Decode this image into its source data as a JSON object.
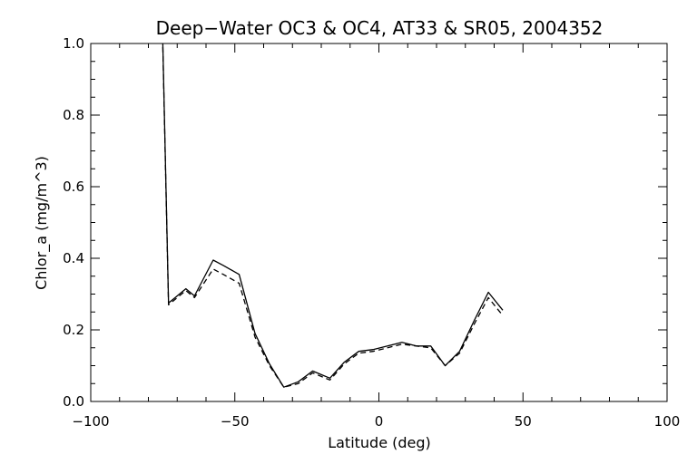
{
  "chart_data": {
    "type": "line",
    "title": "Deep−Water OC3 & OC4, AT33 & SR05, 2004352",
    "xlabel": "Latitude (deg)",
    "ylabel": "Chlor_a (mg/m^3)",
    "xlim": [
      -100,
      100
    ],
    "ylim": [
      0.0,
      1.0
    ],
    "x_ticks": [
      -100,
      -50,
      0,
      50,
      100
    ],
    "x_tick_labels": [
      "−100",
      "−50",
      "0",
      "50",
      "100"
    ],
    "y_ticks": [
      0.0,
      0.2,
      0.4,
      0.6,
      0.8,
      1.0
    ],
    "y_tick_labels": [
      "0.0",
      "0.2",
      "0.4",
      "0.6",
      "0.8",
      "1.0"
    ],
    "grid": false,
    "series": [
      {
        "style": "solid",
        "x": [
          -75,
          -73,
          -70,
          -67,
          -64,
          -57.5,
          -54,
          -48.5,
          -43,
          -38,
          -33,
          -28,
          -23,
          -20,
          -17,
          -12,
          -7,
          -2,
          3,
          8,
          13,
          18,
          23,
          28,
          33,
          38,
          43
        ],
        "y": [
          1.0,
          0.275,
          0.295,
          0.315,
          0.295,
          0.395,
          0.38,
          0.355,
          0.19,
          0.105,
          0.04,
          0.055,
          0.085,
          0.075,
          0.065,
          0.11,
          0.14,
          0.145,
          0.155,
          0.165,
          0.155,
          0.155,
          0.1,
          0.14,
          0.225,
          0.305,
          0.255
        ]
      },
      {
        "style": "dashed",
        "x": [
          -75,
          -73,
          -70,
          -67,
          -64,
          -57.5,
          -54,
          -48.5,
          -43,
          -38,
          -33,
          -28,
          -23,
          -20,
          -17,
          -12,
          -7,
          -2,
          3,
          8,
          13,
          18,
          23,
          28,
          33,
          38,
          43
        ],
        "y": [
          0.99,
          0.27,
          0.29,
          0.31,
          0.29,
          0.37,
          0.355,
          0.33,
          0.18,
          0.1,
          0.04,
          0.05,
          0.08,
          0.07,
          0.06,
          0.105,
          0.135,
          0.14,
          0.15,
          0.16,
          0.155,
          0.15,
          0.1,
          0.135,
          0.215,
          0.29,
          0.24
        ]
      }
    ]
  }
}
